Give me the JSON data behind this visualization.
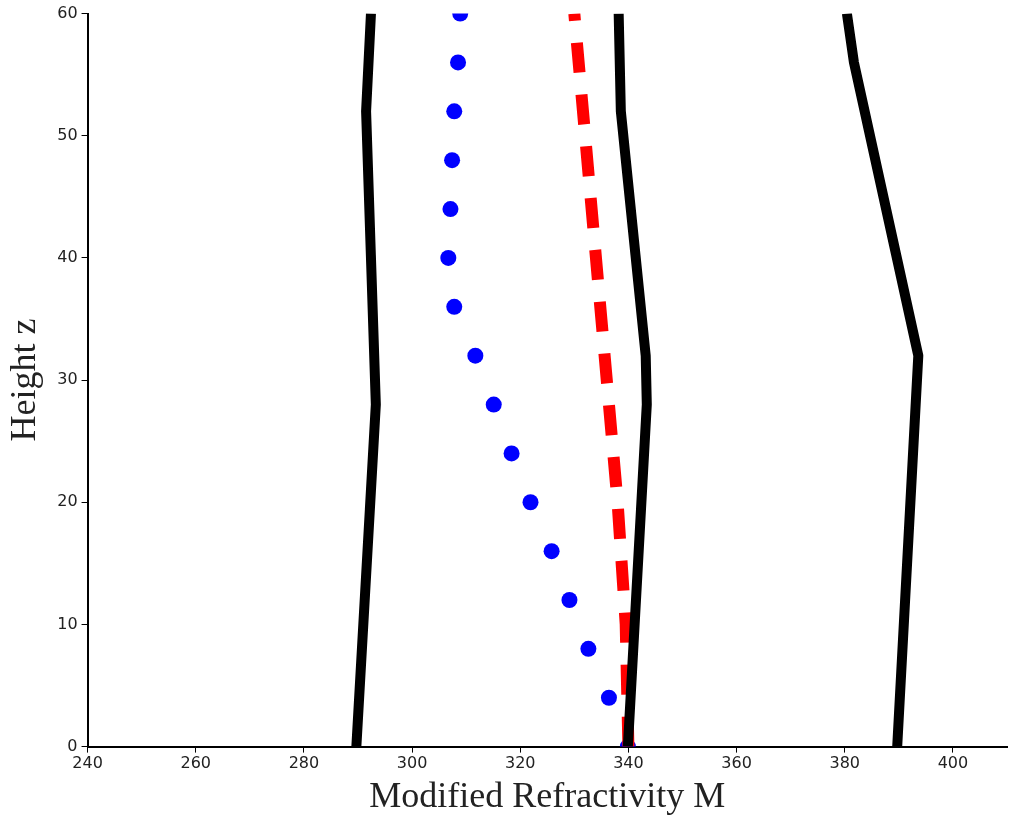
{
  "chart_data": {
    "type": "line",
    "xlabel": "Modified Refractivity M",
    "ylabel": "Height z",
    "xlim": [
      240,
      410
    ],
    "ylim": [
      0,
      60
    ],
    "xticks": [
      240,
      260,
      280,
      300,
      320,
      340,
      360,
      380,
      400
    ],
    "yticks": [
      0,
      10,
      20,
      30,
      40,
      50,
      60
    ],
    "grid": false,
    "legend": false,
    "series": [
      {
        "color": "#000000",
        "x": [
          289.7,
          293.3,
          291.5,
          292.4
        ],
        "values": [
          0,
          28,
          52,
          60
        ]
      },
      {
        "color": "#000000",
        "x": [
          339.9,
          343.4,
          343.2,
          338.6,
          338.2
        ],
        "values": [
          0,
          28,
          32,
          52,
          60
        ]
      },
      {
        "color": "#000000",
        "x": [
          389.7,
          393.6,
          381.7,
          380.4
        ],
        "values": [
          0,
          32,
          56,
          60
        ]
      },
      {
        "color": "#ff0000",
        "line_style": "dashed",
        "x": [
          340,
          339.5,
          338,
          336,
          334,
          332,
          330
        ],
        "values": [
          0,
          10,
          20,
          30,
          40,
          50,
          60
        ]
      },
      {
        "type": "scatter",
        "marker": "circle",
        "color": "#0000ff",
        "x": [
          339.9,
          336.4,
          332.6,
          329.1,
          325.8,
          321.9,
          318.4,
          315.1,
          311.7,
          307.8,
          306.7,
          307.1,
          307.4,
          307.8,
          308.5,
          308.9
        ],
        "values": [
          0,
          4,
          8,
          12,
          16,
          20,
          24,
          28,
          32,
          36,
          40,
          44,
          48,
          52,
          56,
          60
        ]
      }
    ]
  }
}
